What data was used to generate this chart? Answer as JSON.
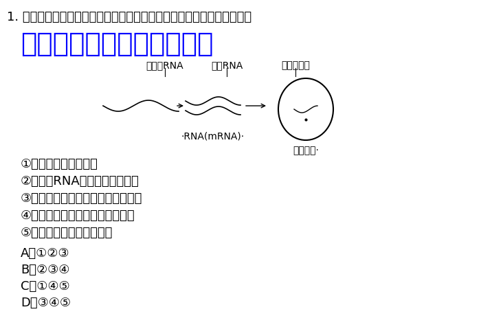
{
  "bg_color": "#ffffff",
  "question_number": "1.",
  "question_text": "如图是甲型流感病毒的增殖过程，下列与该病毒相关的叙述，正确的是",
  "watermark_line1": "微信公众号关注：趣找答案",
  "diagram_labels": {
    "label1": "病毒的RNA",
    "label2": "子代RNA",
    "label3": "衣壳蛋白质",
    "label4": "·RNA(mRNA)·",
    "label5": "完整病毒·"
  },
  "options_list": [
    "①增殖的原料来自细菌",
    "②催化＋RNA合成的是逆转录酶",
    "③病毒具有引起人体免疫反应的抗原",
    "④增殖过程需要宿主细胞提供能量",
    "⑤在生态系统中属于消费者"
  ],
  "choices": [
    "A．①②③",
    "B．②③④",
    "C．①④⑤",
    "D．③④⑤"
  ],
  "watermark_color": "#0000ff",
  "text_color": "#000000",
  "font_size_question": 13,
  "font_size_options": 13,
  "font_size_choices": 13,
  "font_size_watermark": 28
}
